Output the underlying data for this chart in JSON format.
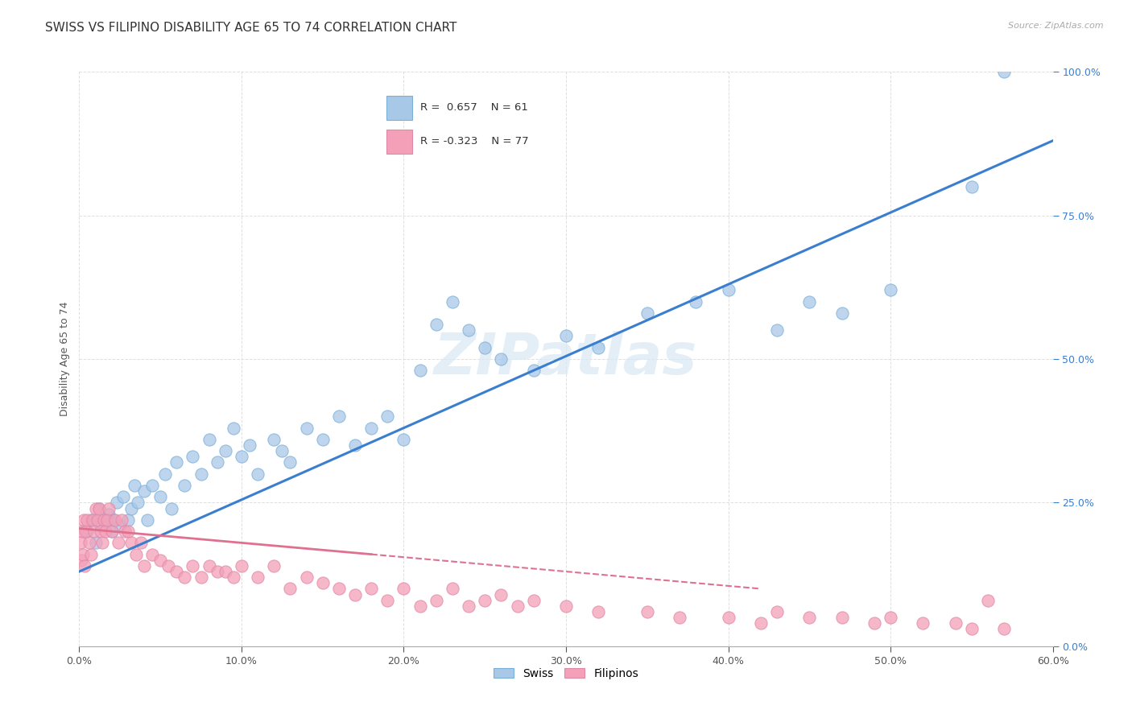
{
  "title": "SWISS VS FILIPINO DISABILITY AGE 65 TO 74 CORRELATION CHART",
  "source": "Source: ZipAtlas.com",
  "xlim": [
    0.0,
    60.0
  ],
  "ylim": [
    0.0,
    100.0
  ],
  "ylabel": "Disability Age 65 to 74",
  "swiss_R": 0.657,
  "swiss_N": 61,
  "filipino_R": -0.323,
  "filipino_N": 77,
  "swiss_color": "#a8c8e8",
  "filipino_color": "#f4a0b8",
  "swiss_line_color": "#3a7ecf",
  "filipino_line_color": "#e07090",
  "background_color": "#ffffff",
  "grid_color": "#e0e0e0",
  "watermark": "ZIPatlas",
  "swiss_line_y0": 13.0,
  "swiss_line_y1": 88.0,
  "swiss_line_x0": 0.0,
  "swiss_line_x1": 60.0,
  "filipino_line_y0": 20.5,
  "filipino_line_y1": 5.5,
  "filipino_line_x0": 0.0,
  "filipino_line_x1": 60.0,
  "filipino_solid_end_x": 18.0,
  "filipino_dash_end_x": 42.0,
  "swiss_x": [
    0.5,
    0.7,
    1.0,
    1.2,
    1.3,
    1.5,
    1.8,
    2.0,
    2.1,
    2.3,
    2.5,
    2.7,
    3.0,
    3.2,
    3.4,
    3.6,
    4.0,
    4.2,
    4.5,
    5.0,
    5.3,
    5.7,
    6.0,
    6.5,
    7.0,
    7.5,
    8.0,
    8.5,
    9.0,
    9.5,
    10.0,
    10.5,
    11.0,
    12.0,
    12.5,
    13.0,
    14.0,
    15.0,
    16.0,
    17.0,
    18.0,
    19.0,
    20.0,
    21.0,
    22.0,
    23.0,
    24.0,
    25.0,
    26.0,
    28.0,
    30.0,
    32.0,
    35.0,
    38.0,
    40.0,
    43.0,
    45.0,
    47.0,
    50.0,
    55.0,
    57.0
  ],
  "swiss_y": [
    20.0,
    22.0,
    18.0,
    24.0,
    21.0,
    22.0,
    23.0,
    20.0,
    22.0,
    25.0,
    21.0,
    26.0,
    22.0,
    24.0,
    28.0,
    25.0,
    27.0,
    22.0,
    28.0,
    26.0,
    30.0,
    24.0,
    32.0,
    28.0,
    33.0,
    30.0,
    36.0,
    32.0,
    34.0,
    38.0,
    33.0,
    35.0,
    30.0,
    36.0,
    34.0,
    32.0,
    38.0,
    36.0,
    40.0,
    35.0,
    38.0,
    40.0,
    36.0,
    48.0,
    56.0,
    60.0,
    55.0,
    52.0,
    50.0,
    48.0,
    54.0,
    52.0,
    58.0,
    60.0,
    62.0,
    55.0,
    60.0,
    58.0,
    62.0,
    80.0,
    100.0
  ],
  "filipino_x": [
    0.1,
    0.15,
    0.2,
    0.25,
    0.3,
    0.35,
    0.4,
    0.5,
    0.6,
    0.7,
    0.8,
    0.9,
    1.0,
    1.1,
    1.2,
    1.3,
    1.4,
    1.5,
    1.6,
    1.7,
    1.8,
    2.0,
    2.2,
    2.4,
    2.6,
    2.8,
    3.0,
    3.2,
    3.5,
    3.8,
    4.0,
    4.5,
    5.0,
    5.5,
    6.0,
    6.5,
    7.0,
    7.5,
    8.0,
    8.5,
    9.0,
    9.5,
    10.0,
    11.0,
    12.0,
    13.0,
    14.0,
    15.0,
    16.0,
    17.0,
    18.0,
    19.0,
    20.0,
    21.0,
    22.0,
    23.0,
    24.0,
    25.0,
    26.0,
    27.0,
    28.0,
    30.0,
    32.0,
    35.0,
    37.0,
    40.0,
    42.0,
    43.0,
    45.0,
    47.0,
    49.0,
    50.0,
    52.0,
    54.0,
    55.0,
    56.0,
    57.0
  ],
  "filipino_y": [
    18.0,
    15.0,
    20.0,
    16.0,
    22.0,
    14.0,
    20.0,
    22.0,
    18.0,
    16.0,
    22.0,
    20.0,
    24.0,
    22.0,
    24.0,
    20.0,
    18.0,
    22.0,
    20.0,
    22.0,
    24.0,
    20.0,
    22.0,
    18.0,
    22.0,
    20.0,
    20.0,
    18.0,
    16.0,
    18.0,
    14.0,
    16.0,
    15.0,
    14.0,
    13.0,
    12.0,
    14.0,
    12.0,
    14.0,
    13.0,
    13.0,
    12.0,
    14.0,
    12.0,
    14.0,
    10.0,
    12.0,
    11.0,
    10.0,
    9.0,
    10.0,
    8.0,
    10.0,
    7.0,
    8.0,
    10.0,
    7.0,
    8.0,
    9.0,
    7.0,
    8.0,
    7.0,
    6.0,
    6.0,
    5.0,
    5.0,
    4.0,
    6.0,
    5.0,
    5.0,
    4.0,
    5.0,
    4.0,
    4.0,
    3.0,
    8.0,
    3.0
  ]
}
